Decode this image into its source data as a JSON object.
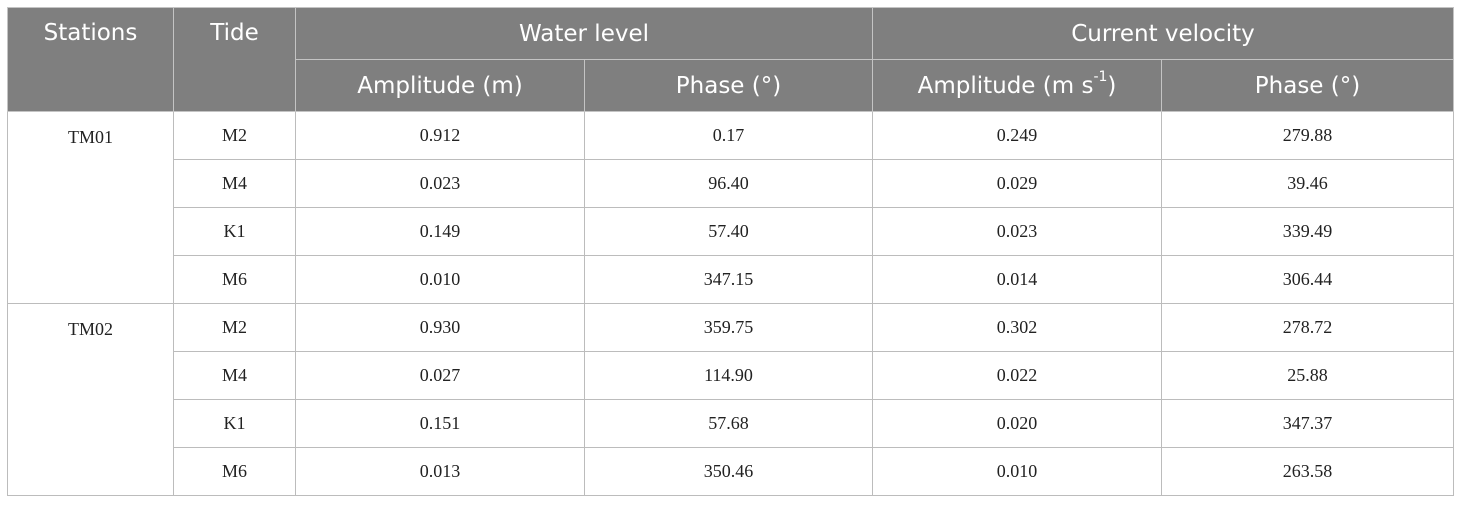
{
  "header": {
    "stations": "Stations",
    "tide": "Tide",
    "water_level": "Water level",
    "current_velocity": "Current velocity",
    "amplitude_m": "Amplitude (m)",
    "phase": "Phase (°)",
    "amplitude_ms_base": "Amplitude (m s",
    "amplitude_ms_sup": "-1",
    "amplitude_ms_close": ")"
  },
  "stations": [
    {
      "name": "TM01",
      "rows": [
        {
          "tide": "M2",
          "wl_amp": "0.912",
          "wl_phase": "0.17",
          "cv_amp": "0.249",
          "cv_phase": "279.88"
        },
        {
          "tide": "M4",
          "wl_amp": "0.023",
          "wl_phase": "96.40",
          "cv_amp": "0.029",
          "cv_phase": "39.46"
        },
        {
          "tide": "K1",
          "wl_amp": "0.149",
          "wl_phase": "57.40",
          "cv_amp": "0.023",
          "cv_phase": "339.49"
        },
        {
          "tide": "M6",
          "wl_amp": "0.010",
          "wl_phase": "347.15",
          "cv_amp": "0.014",
          "cv_phase": "306.44"
        }
      ]
    },
    {
      "name": "TM02",
      "rows": [
        {
          "tide": "M2",
          "wl_amp": "0.930",
          "wl_phase": "359.75",
          "cv_amp": "0.302",
          "cv_phase": "278.72"
        },
        {
          "tide": "M4",
          "wl_amp": "0.027",
          "wl_phase": "114.90",
          "cv_amp": "0.022",
          "cv_phase": "25.88"
        },
        {
          "tide": "K1",
          "wl_amp": "0.151",
          "wl_phase": "57.68",
          "cv_amp": "0.020",
          "cv_phase": "347.37"
        },
        {
          "tide": "M6",
          "wl_amp": "0.013",
          "wl_phase": "350.46",
          "cv_amp": "0.010",
          "cv_phase": "263.58"
        }
      ]
    }
  ],
  "colors": {
    "header_bg": "#7f7f7f",
    "header_text": "#ffffff",
    "grid": "#bcbcbc",
    "body_text": "#222222"
  }
}
